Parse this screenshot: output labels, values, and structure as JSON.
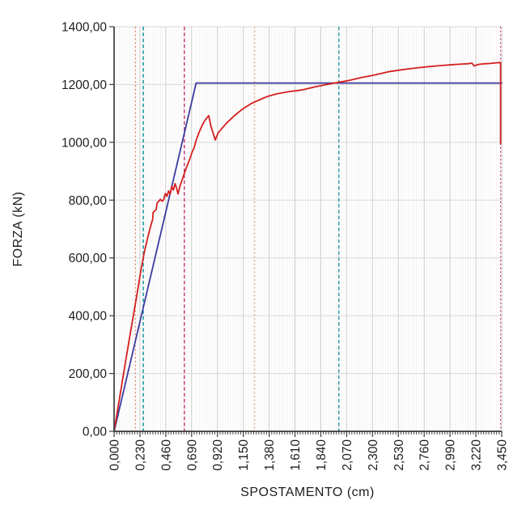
{
  "chart_data": {
    "type": "line",
    "title": "",
    "xlabel": "SPOSTAMENTO (cm)",
    "ylabel": "FORZA (kN)",
    "xlim": [
      0,
      3.45
    ],
    "ylim": [
      0,
      1400
    ],
    "x_major_step": 0.23,
    "x_minor_step": 0.023,
    "y_major_step": 200,
    "x_tick_labels": [
      "0,000",
      "0,230",
      "0,460",
      "0,690",
      "0,920",
      "1,150",
      "1,380",
      "1,610",
      "1,840",
      "2,070",
      "2,300",
      "2,530",
      "2,760",
      "2,990",
      "3,220",
      "3,450"
    ],
    "y_tick_labels": [
      "0,00",
      "200,00",
      "400,00",
      "600,00",
      "800,00",
      "1000,00",
      "1200,00",
      "1400,00"
    ],
    "grid": {
      "vertical_major": true,
      "vertical_minor": true,
      "horizontal_major": true,
      "legend": "none"
    },
    "colors": {
      "capacity_curve": "#d41f1f",
      "bilinear_curve": "#3b3b9e",
      "grid_major_v": "#c7c7c7",
      "grid_minor_v": "#f2efee",
      "grid_major_h": "#d9d9d9",
      "axis": "#3a3a3a"
    },
    "series": [
      {
        "name": "blue-bilinear-curve",
        "color": "#3b3b9e",
        "width": 1.8,
        "points": [
          [
            0,
            0
          ],
          [
            0.73,
            1205
          ],
          [
            3.45,
            1205
          ]
        ]
      },
      {
        "name": "red-capacity-curve",
        "color": "#d41f1f",
        "width": 1.8,
        "points": [
          [
            0,
            0
          ],
          [
            0.05,
            118
          ],
          [
            0.1,
            237
          ],
          [
            0.15,
            352
          ],
          [
            0.2,
            466
          ],
          [
            0.24,
            560
          ],
          [
            0.27,
            622
          ],
          [
            0.3,
            672
          ],
          [
            0.32,
            702
          ],
          [
            0.337,
            726
          ],
          [
            0.343,
            732
          ],
          [
            0.348,
            758
          ],
          [
            0.362,
            763
          ],
          [
            0.374,
            767
          ],
          [
            0.384,
            791
          ],
          [
            0.398,
            796
          ],
          [
            0.412,
            803
          ],
          [
            0.427,
            796
          ],
          [
            0.441,
            801
          ],
          [
            0.456,
            823
          ],
          [
            0.47,
            813
          ],
          [
            0.485,
            832
          ],
          [
            0.499,
            821
          ],
          [
            0.513,
            847
          ],
          [
            0.528,
            835
          ],
          [
            0.542,
            857
          ],
          [
            0.556,
            842
          ],
          [
            0.569,
            821
          ],
          [
            0.588,
            851
          ],
          [
            0.609,
            874
          ],
          [
            0.631,
            899
          ],
          [
            0.652,
            921
          ],
          [
            0.673,
            941
          ],
          [
            0.694,
            966
          ],
          [
            0.713,
            982
          ],
          [
            0.731,
            1008
          ],
          [
            0.755,
            1033
          ],
          [
            0.779,
            1055
          ],
          [
            0.802,
            1072
          ],
          [
            0.824,
            1084
          ],
          [
            0.843,
            1092
          ],
          [
            0.862,
            1055
          ],
          [
            0.9,
            1008
          ],
          [
            0.925,
            1032
          ],
          [
            0.955,
            1046
          ],
          [
            1.0,
            1066
          ],
          [
            1.07,
            1092
          ],
          [
            1.14,
            1114
          ],
          [
            1.22,
            1134
          ],
          [
            1.3,
            1148
          ],
          [
            1.36,
            1158
          ],
          [
            1.45,
            1168
          ],
          [
            1.55,
            1175
          ],
          [
            1.67,
            1181
          ],
          [
            1.78,
            1191
          ],
          [
            1.88,
            1199
          ],
          [
            1.96,
            1205
          ],
          [
            2.02,
            1209
          ],
          [
            2.1,
            1215
          ],
          [
            2.2,
            1224
          ],
          [
            2.32,
            1233
          ],
          [
            2.44,
            1244
          ],
          [
            2.56,
            1251
          ],
          [
            2.68,
            1257
          ],
          [
            2.8,
            1262
          ],
          [
            2.92,
            1266
          ],
          [
            3.02,
            1269
          ],
          [
            3.1,
            1271
          ],
          [
            3.155,
            1272
          ],
          [
            3.185,
            1274
          ],
          [
            3.205,
            1264
          ],
          [
            3.235,
            1269
          ],
          [
            3.27,
            1271
          ],
          [
            3.31,
            1272
          ],
          [
            3.35,
            1273
          ],
          [
            3.4,
            1275
          ],
          [
            3.435,
            1276
          ],
          [
            3.44,
            1276
          ],
          [
            3.44,
            994
          ]
        ]
      }
    ],
    "vertical_lines": [
      {
        "x": 0.19,
        "color": "#dc8672",
        "style": "dotted"
      },
      {
        "x": 0.26,
        "color": "#1896a0",
        "style": "dashed"
      },
      {
        "x": 0.625,
        "color": "#c33d7e",
        "style": "dashed"
      },
      {
        "x": 1.25,
        "color": "#dfa38d",
        "style": "dotted"
      },
      {
        "x": 2.0,
        "color": "#2f98a0",
        "style": "dashed"
      },
      {
        "x": 3.44,
        "color": "#ce5570",
        "style": "dotted"
      }
    ]
  }
}
